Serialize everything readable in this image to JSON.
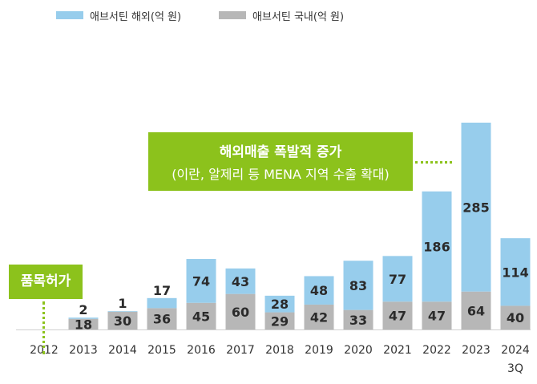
{
  "legend": {
    "overseas_label": "애브서틴 해외(억 원)",
    "domestic_label": "애브서틴 국내(억 원)"
  },
  "colors": {
    "overseas": "#97cdec",
    "domestic": "#b7b7b7",
    "accent": "#8cc21c",
    "label_text": "#2b2b2b"
  },
  "callout_main": {
    "line1": "해외매출 폭발적 증가",
    "line2": "(이란, 알제리 등 MENA 지역 수출 확대)"
  },
  "callout_side": {
    "text": "품목허가"
  },
  "chart_data": {
    "type": "bar",
    "stacked": true,
    "categories": [
      "2012",
      "2013",
      "2014",
      "2015",
      "2016",
      "2017",
      "2018",
      "2019",
      "2020",
      "2021",
      "2022",
      "2023",
      "2024\n3Q"
    ],
    "series": [
      {
        "name": "애브서틴 국내(억 원)",
        "values": [
          null,
          18,
          30,
          36,
          45,
          60,
          29,
          42,
          33,
          47,
          47,
          64,
          40
        ]
      },
      {
        "name": "애브서틴 해외(억 원)",
        "values": [
          null,
          2,
          1,
          17,
          74,
          43,
          28,
          48,
          83,
          77,
          186,
          285,
          114
        ]
      }
    ],
    "title": "",
    "xlabel": "",
    "ylabel": "",
    "ylim": [
      0,
      360
    ],
    "grid": false,
    "legend_position": "top-left"
  }
}
